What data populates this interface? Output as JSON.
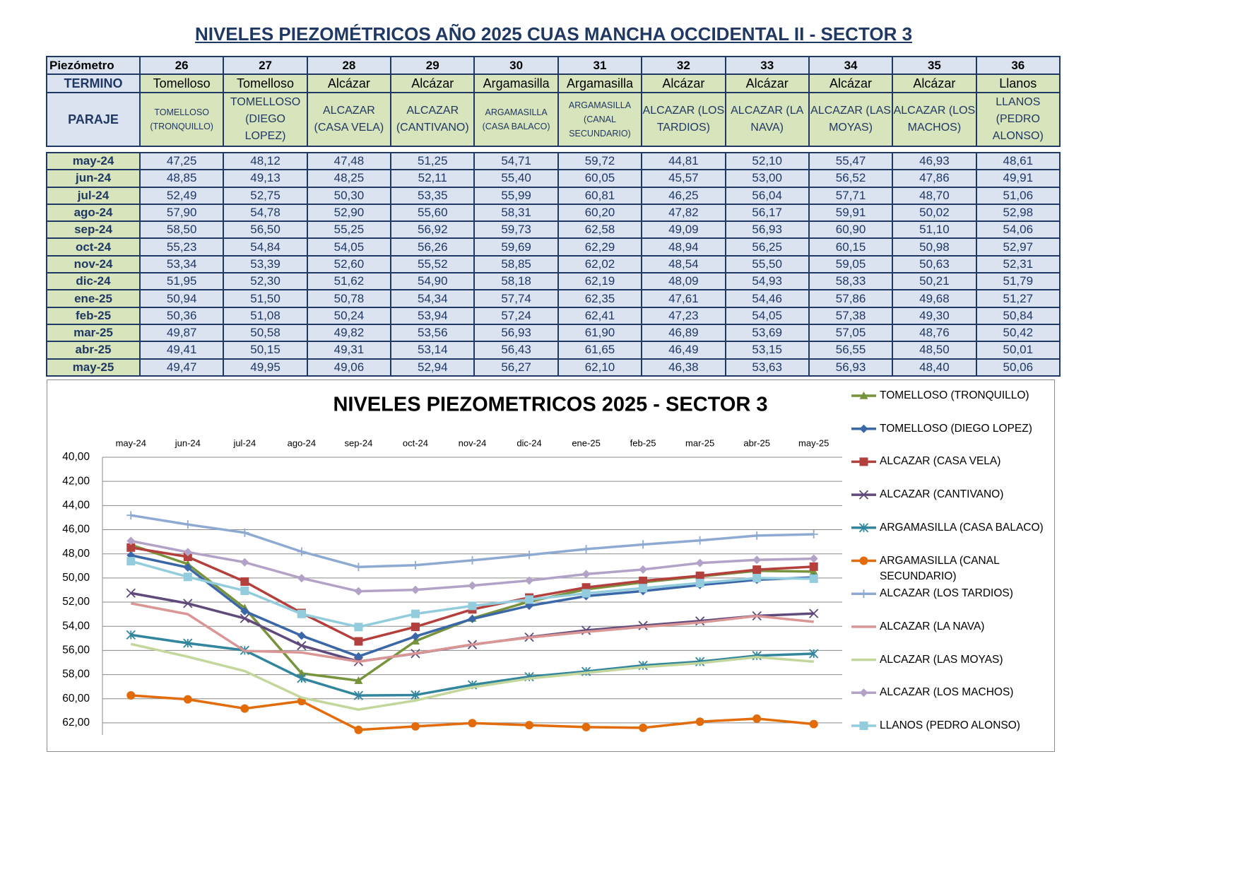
{
  "header": {
    "title": "NIVELES PIEZOMÉTRICOS AÑO 2025 CUAS MANCHA OCCIDENTAL II - SECTOR 3"
  },
  "table": {
    "piezometro_label": "Piezómetro",
    "piezometros": [
      26,
      27,
      28,
      29,
      30,
      31,
      32,
      33,
      34,
      35,
      36
    ],
    "termino_label": "TERMINO",
    "terminos": [
      "Tomelloso",
      "Tomelloso",
      "Alcázar",
      "Alcázar",
      "Argamasilla",
      "Argamasilla",
      "Alcázar",
      "Alcázar",
      "Alcázar",
      "Alcázar",
      "Llanos"
    ],
    "paraje_label": "PARAJE",
    "parajes": [
      "TOMELLOSO (TRONQUILLO)",
      "TOMELLOSO (DIEGO LOPEZ)",
      "ALCAZAR (CASA VELA)",
      "ALCAZAR (CANTIVANO)",
      "ARGAMASILLA (CASA BALACO)",
      "ARGAMASILLA (CANAL SECUNDARIO)",
      "ALCAZAR (LOS TARDIOS)",
      "ALCAZAR (LA NAVA)",
      "ALCAZAR (LAS MOYAS)",
      "ALCAZAR (LOS MACHOS)",
      "LLANOS (PEDRO ALONSO)"
    ],
    "rows": [
      {
        "month": "may-24",
        "values": [
          "47,25",
          "48,12",
          "47,48",
          "51,25",
          "54,71",
          "59,72",
          "44,81",
          "52,10",
          "55,47",
          "46,93",
          "48,61"
        ]
      },
      {
        "month": "jun-24",
        "values": [
          "48,85",
          "49,13",
          "48,25",
          "52,11",
          "55,40",
          "60,05",
          "45,57",
          "53,00",
          "56,52",
          "47,86",
          "49,91"
        ]
      },
      {
        "month": "jul-24",
        "values": [
          "52,49",
          "52,75",
          "50,30",
          "53,35",
          "55,99",
          "60,81",
          "46,25",
          "56,04",
          "57,71",
          "48,70",
          "51,06"
        ]
      },
      {
        "month": "ago-24",
        "values": [
          "57,90",
          "54,78",
          "52,90",
          "55,60",
          "58,31",
          "60,20",
          "47,82",
          "56,17",
          "59,91",
          "50,02",
          "52,98"
        ]
      },
      {
        "month": "sep-24",
        "values": [
          "58,50",
          "56,50",
          "55,25",
          "56,92",
          "59,73",
          "62,58",
          "49,09",
          "56,93",
          "60,90",
          "51,10",
          "54,06"
        ]
      },
      {
        "month": "oct-24",
        "values": [
          "55,23",
          "54,84",
          "54,05",
          "56,26",
          "59,69",
          "62,29",
          "48,94",
          "56,25",
          "60,15",
          "50,98",
          "52,97"
        ]
      },
      {
        "month": "nov-24",
        "values": [
          "53,34",
          "53,39",
          "52,60",
          "55,52",
          "58,85",
          "62,02",
          "48,54",
          "55,50",
          "59,05",
          "50,63",
          "52,31"
        ]
      },
      {
        "month": "dic-24",
        "values": [
          "51,95",
          "52,30",
          "51,62",
          "54,90",
          "58,18",
          "62,19",
          "48,09",
          "54,93",
          "58,33",
          "50,21",
          "51,79"
        ]
      },
      {
        "month": "ene-25",
        "values": [
          "50,94",
          "51,50",
          "50,78",
          "54,34",
          "57,74",
          "62,35",
          "47,61",
          "54,46",
          "57,86",
          "49,68",
          "51,27"
        ]
      },
      {
        "month": "feb-25",
        "values": [
          "50,36",
          "51,08",
          "50,24",
          "53,94",
          "57,24",
          "62,41",
          "47,23",
          "54,05",
          "57,38",
          "49,30",
          "50,84"
        ]
      },
      {
        "month": "mar-25",
        "values": [
          "49,87",
          "50,58",
          "49,82",
          "53,56",
          "56,93",
          "61,90",
          "46,89",
          "53,69",
          "57,05",
          "48,76",
          "50,42"
        ]
      },
      {
        "month": "abr-25",
        "values": [
          "49,41",
          "50,15",
          "49,31",
          "53,14",
          "56,43",
          "61,65",
          "46,49",
          "53,15",
          "56,55",
          "48,50",
          "50,01"
        ]
      },
      {
        "month": "may-25",
        "values": [
          "49,47",
          "49,95",
          "49,06",
          "52,94",
          "56,27",
          "62,10",
          "46,38",
          "53,63",
          "56,93",
          "48,40",
          "50,06"
        ]
      }
    ]
  },
  "chart_data": {
    "type": "line",
    "title": "NIVELES PIEZOMETRICOS 2025 - SECTOR 3",
    "categories": [
      "may-24",
      "jun-24",
      "jul-24",
      "ago-24",
      "sep-24",
      "oct-24",
      "nov-24",
      "dic-24",
      "ene-25",
      "feb-25",
      "mar-25",
      "abr-25",
      "may-25"
    ],
    "ylim": [
      40,
      63
    ],
    "y_inverted": true,
    "grid": true,
    "legend": "right",
    "yticks": [
      {
        "value": 40,
        "label": "40,00"
      },
      {
        "value": 42,
        "label": "42,00"
      },
      {
        "value": 44,
        "label": "44,00"
      },
      {
        "value": 46,
        "label": "46,00"
      },
      {
        "value": 48,
        "label": "48,00"
      },
      {
        "value": 50,
        "label": "50,00"
      },
      {
        "value": 52,
        "label": "52,00"
      },
      {
        "value": 54,
        "label": "54,00"
      },
      {
        "value": 56,
        "label": "56,00"
      },
      {
        "value": 58,
        "label": "58,00"
      },
      {
        "value": 60,
        "label": "60,00"
      },
      {
        "value": 62,
        "label": "62,00"
      }
    ],
    "series": [
      {
        "name": "TOMELLOSO (TRONQUILLO)",
        "color": "#77933c",
        "marker": "triangle",
        "values": [
          47.25,
          48.85,
          52.49,
          57.9,
          58.5,
          55.23,
          53.34,
          51.95,
          50.94,
          50.36,
          49.87,
          49.41,
          49.47
        ]
      },
      {
        "name": "TOMELLOSO (DIEGO LOPEZ)",
        "color": "#3a67a8",
        "marker": "diamond",
        "values": [
          48.12,
          49.13,
          52.75,
          54.78,
          56.5,
          54.84,
          53.39,
          52.3,
          51.5,
          51.08,
          50.58,
          50.15,
          49.95
        ]
      },
      {
        "name": "ALCAZAR (CASA VELA)",
        "color": "#b3403d",
        "marker": "square",
        "values": [
          47.48,
          48.25,
          50.3,
          52.9,
          55.25,
          54.05,
          52.6,
          51.62,
          50.78,
          50.24,
          49.82,
          49.31,
          49.06
        ]
      },
      {
        "name": "ALCAZAR (CANTIVANO)",
        "color": "#604a7b",
        "marker": "x",
        "values": [
          51.25,
          52.11,
          53.35,
          55.6,
          56.92,
          56.26,
          55.52,
          54.9,
          54.34,
          53.94,
          53.56,
          53.14,
          52.94
        ]
      },
      {
        "name": "ARGAMASILLA (CASA BALACO)",
        "color": "#31859c",
        "marker": "star",
        "values": [
          54.71,
          55.4,
          55.99,
          58.31,
          59.73,
          59.69,
          58.85,
          58.18,
          57.74,
          57.24,
          56.93,
          56.43,
          56.27
        ]
      },
      {
        "name": "ARGAMASILLA (CANAL SECUNDARIO)",
        "color": "#e36c0a",
        "marker": "circle",
        "values": [
          59.72,
          60.05,
          60.81,
          60.2,
          62.58,
          62.29,
          62.02,
          62.19,
          62.35,
          62.41,
          61.9,
          61.65,
          62.1
        ]
      },
      {
        "name": "ALCAZAR (LOS TARDIOS)",
        "color": "#8eaad3",
        "marker": "plus",
        "values": [
          44.81,
          45.57,
          46.25,
          47.82,
          49.09,
          48.94,
          48.54,
          48.09,
          47.61,
          47.23,
          46.89,
          46.49,
          46.38
        ]
      },
      {
        "name": "ALCAZAR (LA NAVA)",
        "color": "#d99694",
        "marker": "none",
        "values": [
          52.1,
          53.0,
          56.04,
          56.17,
          56.93,
          56.25,
          55.5,
          54.93,
          54.46,
          54.05,
          53.69,
          53.15,
          53.63
        ]
      },
      {
        "name": "ALCAZAR (LAS MOYAS)",
        "color": "#c3d69b",
        "marker": "none",
        "values": [
          55.47,
          56.52,
          57.71,
          59.91,
          60.9,
          60.15,
          59.05,
          58.33,
          57.86,
          57.38,
          57.05,
          56.55,
          56.93
        ]
      },
      {
        "name": "ALCAZAR (LOS MACHOS)",
        "color": "#b3a2c7",
        "marker": "diamond",
        "values": [
          46.93,
          47.86,
          48.7,
          50.02,
          51.1,
          50.98,
          50.63,
          50.21,
          49.68,
          49.3,
          48.76,
          48.5,
          48.4
        ]
      },
      {
        "name": "LLANOS (PEDRO ALONSO)",
        "color": "#93cddd",
        "marker": "square",
        "values": [
          48.61,
          49.91,
          51.06,
          52.98,
          54.06,
          52.97,
          52.31,
          51.79,
          51.27,
          50.84,
          50.42,
          50.01,
          50.06
        ]
      }
    ]
  }
}
